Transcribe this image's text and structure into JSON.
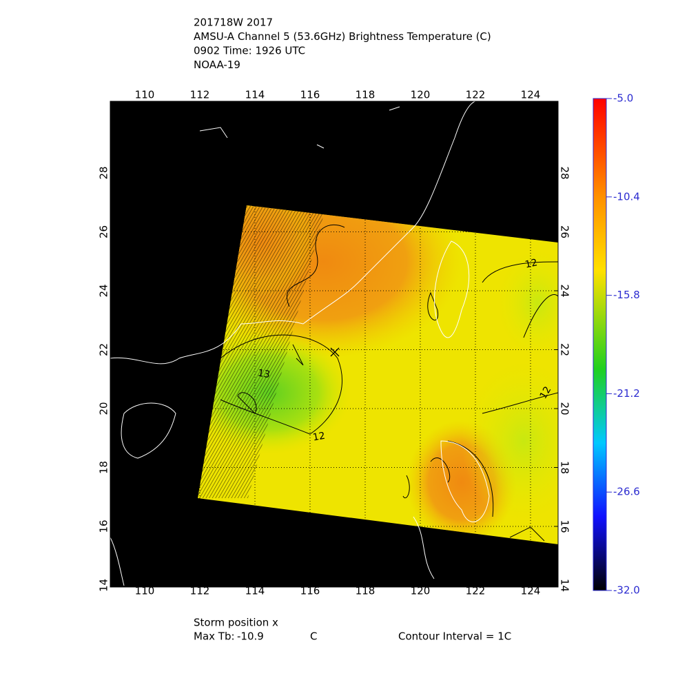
{
  "header": {
    "lines": [
      "201718W 2017",
      "AMSU-A Channel 5 (53.6GHz) Brightness Temperature (C)",
      "0902 Time: 1926 UTC",
      "NOAA-19"
    ]
  },
  "map": {
    "lon_ticks": [
      110,
      112,
      114,
      116,
      118,
      120,
      122,
      124
    ],
    "lat_ticks": [
      14,
      16,
      18,
      20,
      22,
      24,
      26,
      28
    ]
  },
  "contour_labels": [
    "12",
    "13",
    "12",
    "12"
  ],
  "colorbar": {
    "ticks": [
      {
        "value": -5.0,
        "label": "-5.0"
      },
      {
        "value": -10.4,
        "label": "-10.4"
      },
      {
        "value": -15.8,
        "label": "-15.8"
      },
      {
        "value": -21.2,
        "label": "-21.2"
      },
      {
        "value": -26.6,
        "label": "-26.6"
      },
      {
        "value": -32.0,
        "label": "-32.0"
      }
    ]
  },
  "footer": {
    "storm": "Storm position x",
    "max_tb_label": "Max Tb:",
    "max_tb": "-10.9",
    "unit": "C",
    "contour_interval": "Contour Interval = 1C"
  }
}
